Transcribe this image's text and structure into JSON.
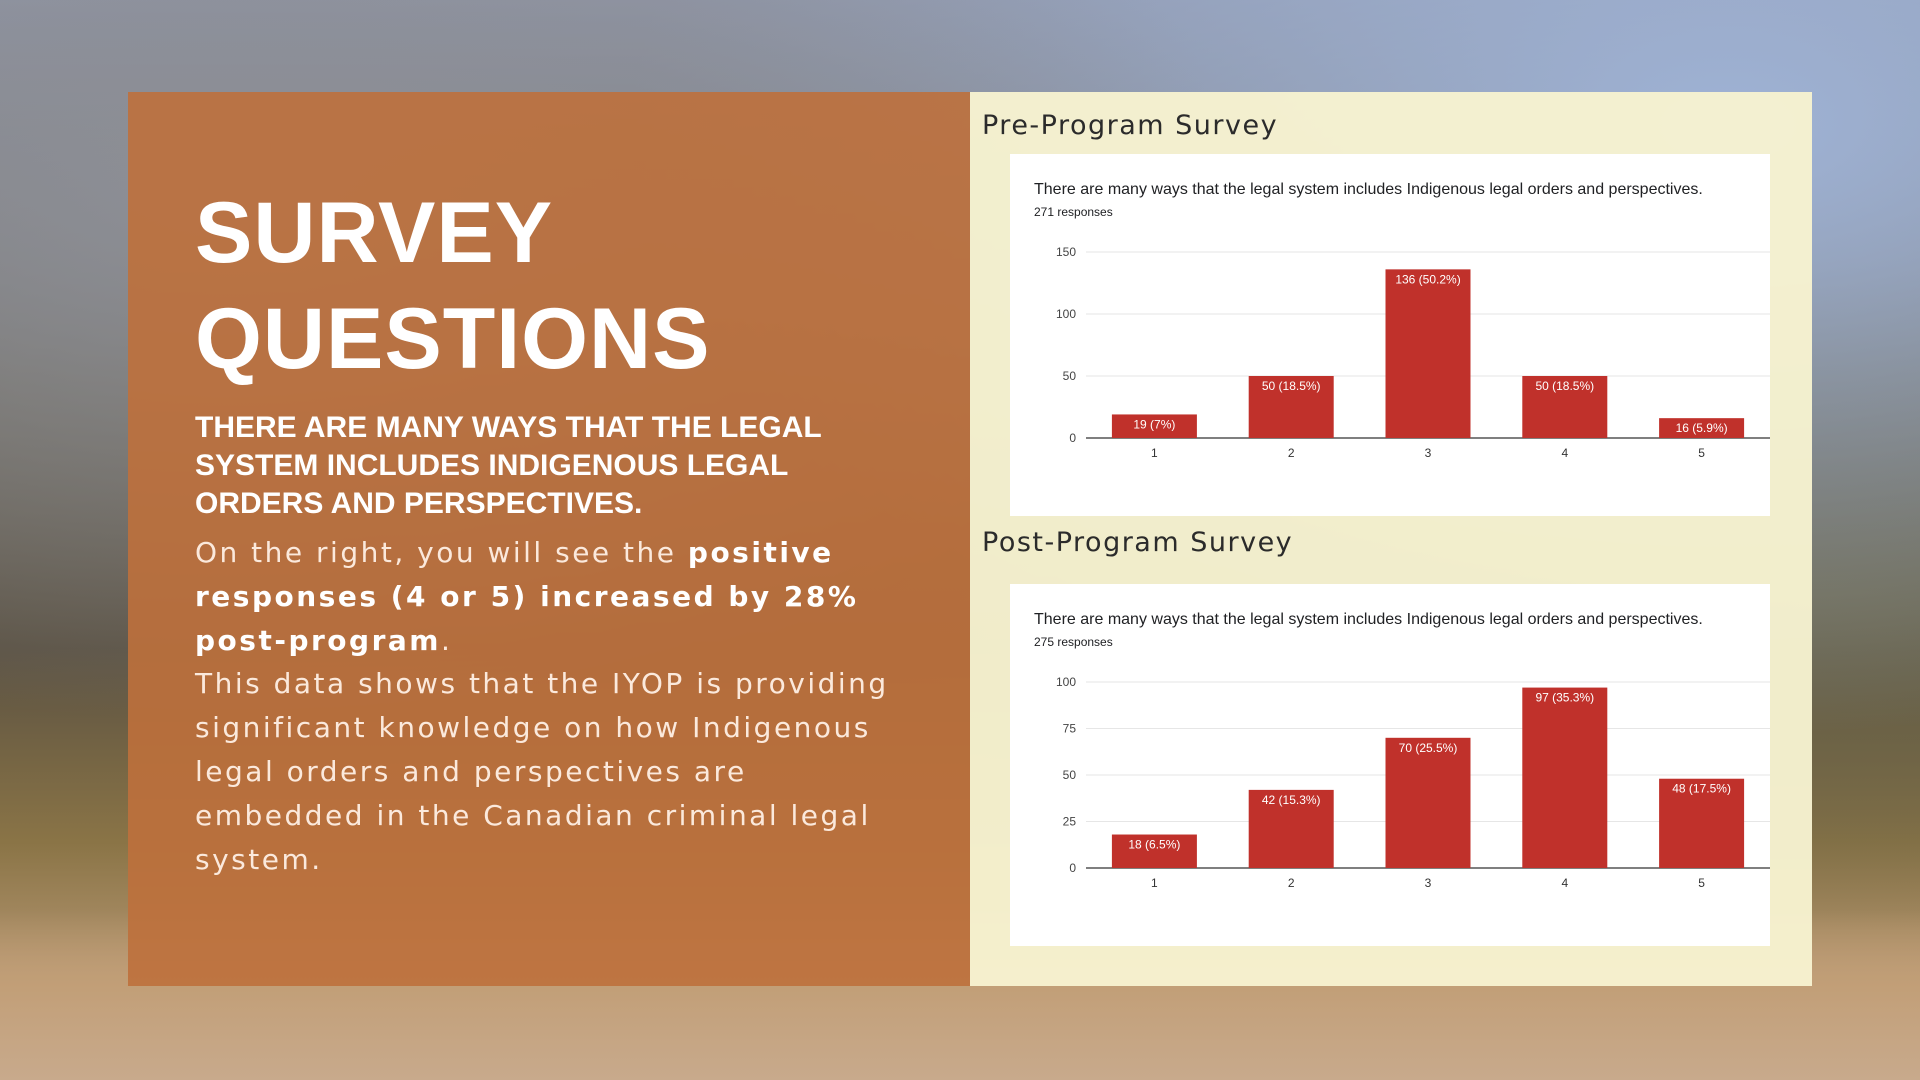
{
  "slide": {
    "title": "SURVEY QUESTIONS",
    "subtitle": "THERE ARE MANY WAYS THAT THE LEGAL SYSTEM INCLUDES INDIGENOUS LEGAL ORDERS AND PERSPECTIVES.",
    "para1_start": "On the right, you will see the ",
    "para1_bold": "positive responses (4 or 5) increased by 28% post-program",
    "para1_end": ".",
    "para2": "This data shows that the IYOP is providing significant knowledge on how Indigenous legal orders and perspectives are embedded in the Canadian criminal legal system."
  },
  "surveys": {
    "pre_label": "Pre-Program Survey",
    "post_label": "Post-Program Survey"
  },
  "colors": {
    "bar": "#c0312b",
    "left_panel": "#be703c",
    "right_panel": "#f7f3d0"
  },
  "chart_data": [
    {
      "type": "bar",
      "title": "There are many ways that the legal system includes Indigenous legal orders and perspectives.",
      "subtitle": "271 responses",
      "categories": [
        "1",
        "2",
        "3",
        "4",
        "5"
      ],
      "values": [
        19,
        50,
        136,
        50,
        16
      ],
      "labels": [
        "19 (7%)",
        "50 (18.5%)",
        "136 (50.2%)",
        "50 (18.5%)",
        "16 (5.9%)"
      ],
      "yticks": [
        "0",
        "50",
        "100",
        "150"
      ],
      "ylim": [
        0,
        150
      ],
      "grid": true
    },
    {
      "type": "bar",
      "title": "There are many ways that the legal system includes Indigenous legal orders and perspectives.",
      "subtitle": "275 responses",
      "categories": [
        "1",
        "2",
        "3",
        "4",
        "5"
      ],
      "values": [
        18,
        42,
        70,
        97,
        48
      ],
      "labels": [
        "18 (6.5%)",
        "42 (15.3%)",
        "70 (25.5%)",
        "97 (35.3%)",
        "48 (17.5%)"
      ],
      "yticks": [
        "0",
        "25",
        "50",
        "75",
        "100"
      ],
      "ylim": [
        0,
        100
      ],
      "grid": true
    }
  ]
}
